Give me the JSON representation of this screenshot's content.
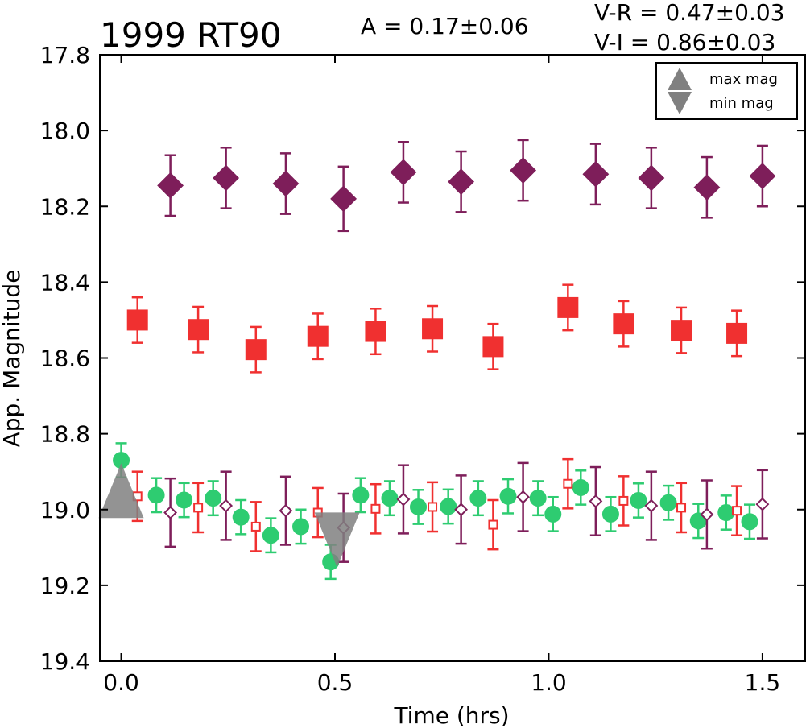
{
  "chart_data": {
    "type": "scatter",
    "title": "1999 RT90",
    "annotations": {
      "amplitude": "A  = 0.17±0.06",
      "vr": "V-R = 0.47±0.03",
      "vi": "V-I  = 0.86±0.03"
    },
    "xlabel": "Time (hrs)",
    "ylabel": "App. Magnitude",
    "xlim": [
      -0.05,
      1.6
    ],
    "ylim": [
      19.4,
      17.8
    ],
    "y_inverted": true,
    "xticks": [
      0.0,
      0.5,
      1.0,
      1.5
    ],
    "xtick_labels": [
      "0.0",
      "0.5",
      "1.0",
      "1.5"
    ],
    "yticks": [
      17.8,
      18.0,
      18.2,
      18.4,
      18.6,
      18.8,
      19.0,
      19.2,
      19.4
    ],
    "ytick_labels": [
      "17.8",
      "18.0",
      "18.2",
      "18.4",
      "18.6",
      "18.8",
      "19.0",
      "19.2",
      "19.4"
    ],
    "grid": false,
    "legend": {
      "position": "top-right",
      "entries": [
        {
          "label": "max mag",
          "marker": "triangle-up",
          "color": "#808080"
        },
        {
          "label": "min mag",
          "marker": "triangle-down",
          "color": "#808080"
        }
      ]
    },
    "series": [
      {
        "color": "#7e1e5a",
        "marker": "diamond",
        "filled": true,
        "x": [
          0.115,
          0.245,
          0.385,
          0.52,
          0.66,
          0.795,
          0.94,
          1.11,
          1.24,
          1.37,
          1.5
        ],
        "y": [
          18.145,
          18.125,
          18.14,
          18.18,
          18.11,
          18.135,
          18.105,
          18.115,
          18.125,
          18.15,
          18.12
        ],
        "err": [
          0.08,
          0.08,
          0.08,
          0.085,
          0.08,
          0.08,
          0.08,
          0.08,
          0.08,
          0.08,
          0.08
        ]
      },
      {
        "color": "#f03030",
        "marker": "square",
        "filled": true,
        "x": [
          0.038,
          0.18,
          0.315,
          0.46,
          0.595,
          0.728,
          0.87,
          1.045,
          1.175,
          1.31,
          1.44
        ],
        "y": [
          18.5,
          18.525,
          18.578,
          18.543,
          18.53,
          18.523,
          18.57,
          18.467,
          18.51,
          18.527,
          18.535
        ],
        "err": [
          0.06,
          0.06,
          0.06,
          0.06,
          0.06,
          0.06,
          0.06,
          0.06,
          0.06,
          0.06,
          0.06
        ]
      },
      {
        "color": "#2ecc71",
        "marker": "circle",
        "filled": true,
        "x": [
          0.0,
          0.082,
          0.147,
          0.215,
          0.28,
          0.35,
          0.42,
          0.49,
          0.56,
          0.628,
          0.695,
          0.765,
          0.835,
          0.905,
          0.975,
          1.01,
          1.075,
          1.145,
          1.21,
          1.28,
          1.35,
          1.415,
          1.47
        ],
        "y": [
          18.87,
          18.962,
          18.975,
          18.97,
          19.02,
          19.068,
          19.045,
          19.138,
          18.962,
          18.97,
          18.993,
          18.992,
          18.97,
          18.965,
          18.97,
          19.012,
          18.942,
          19.012,
          18.976,
          18.982,
          19.03,
          19.008,
          19.032
        ],
        "err": [
          0.045,
          0.045,
          0.045,
          0.045,
          0.045,
          0.045,
          0.045,
          0.045,
          0.045,
          0.045,
          0.045,
          0.045,
          0.045,
          0.045,
          0.045,
          0.045,
          0.045,
          0.045,
          0.045,
          0.045,
          0.045,
          0.045,
          0.045
        ]
      },
      {
        "color": "#f03030",
        "marker": "square",
        "filled": false,
        "x": [
          0.038,
          0.18,
          0.315,
          0.46,
          0.595,
          0.728,
          0.87,
          1.045,
          1.175,
          1.31,
          1.44
        ],
        "y": [
          18.965,
          18.995,
          19.045,
          19.008,
          18.998,
          18.993,
          19.04,
          18.932,
          18.977,
          18.995,
          19.003
        ],
        "err": [
          0.065,
          0.065,
          0.065,
          0.065,
          0.065,
          0.065,
          0.065,
          0.065,
          0.065,
          0.065,
          0.065
        ]
      },
      {
        "color": "#7e1e5a",
        "marker": "diamond",
        "filled": false,
        "x": [
          0.115,
          0.245,
          0.385,
          0.52,
          0.66,
          0.795,
          0.94,
          1.11,
          1.24,
          1.37,
          1.5
        ],
        "y": [
          19.008,
          18.99,
          19.003,
          19.048,
          18.973,
          19.0,
          18.967,
          18.978,
          18.99,
          19.013,
          18.986
        ],
        "err": [
          0.09,
          0.09,
          0.09,
          0.09,
          0.09,
          0.09,
          0.09,
          0.09,
          0.09,
          0.09,
          0.09
        ]
      }
    ],
    "extrema_markers": [
      {
        "label": "max mag",
        "marker": "triangle-up",
        "x": 0.0,
        "y": 18.95,
        "color": "#808080"
      },
      {
        "label": "min mag",
        "marker": "triangle-down",
        "x": 0.505,
        "y": 19.08,
        "color": "#808080"
      }
    ]
  }
}
